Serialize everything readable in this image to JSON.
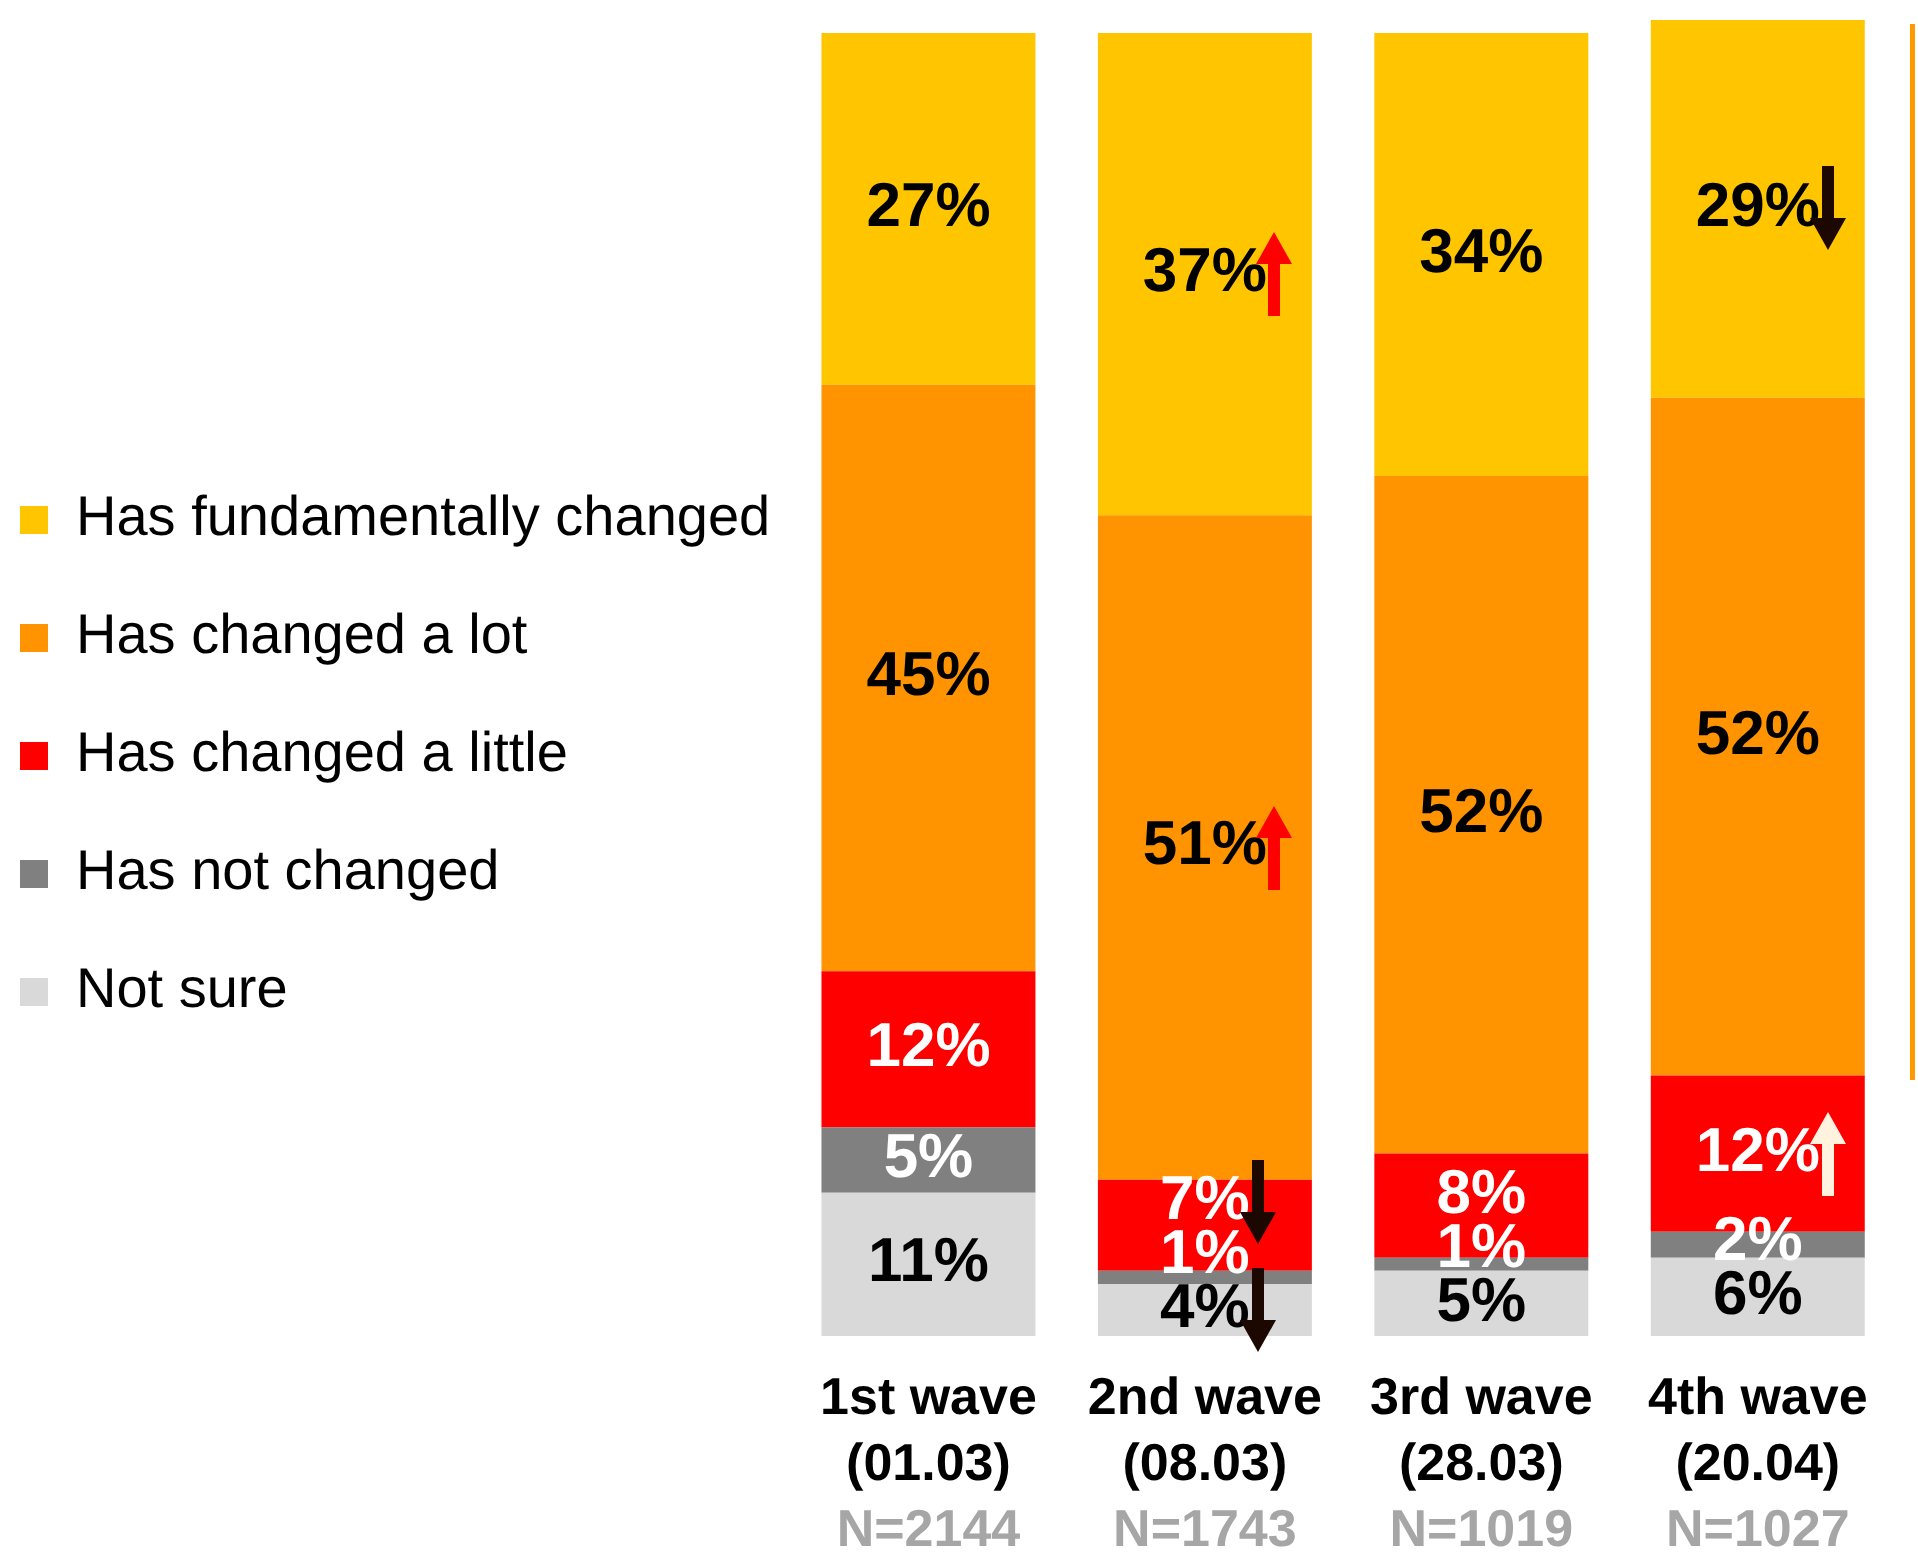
{
  "chart_data": {
    "type": "bar",
    "stacked": true,
    "legend": "left",
    "tick_labels": "x",
    "categories": [
      "1st wave\n(01.03)\nN=2144",
      "2nd wave\n(08.03)\nN=1743",
      "3rd wave\n(28.03)\nN=1019",
      "4th wave\n(20.04)\nN=1027"
    ],
    "series": [
      {
        "name": "Not sure",
        "color": "#d9d9d9",
        "values": [
          11,
          4,
          5,
          6
        ],
        "value_labels": [
          "11%",
          "4%",
          "5%",
          "6%"
        ]
      },
      {
        "name": "Has not changed",
        "color": "#808080",
        "values": [
          5,
          1,
          1,
          2
        ],
        "value_labels": [
          "5%",
          "1%",
          "1%",
          "2%"
        ]
      },
      {
        "name": "Has changed a little",
        "color": "#ff0000",
        "values": [
          12,
          7,
          8,
          12
        ],
        "value_labels": [
          "12%",
          "7%",
          "8%",
          "12%"
        ]
      },
      {
        "name": "Has changed a lot",
        "color": "#ff9400",
        "values": [
          45,
          51,
          52,
          52
        ],
        "value_labels": [
          "45%",
          "51%",
          "52%",
          "52%"
        ]
      },
      {
        "name": "Has fundamentally changed",
        "color": "#ffc600",
        "values": [
          27,
          37,
          34,
          29
        ],
        "value_labels": [
          "27%",
          "37%",
          "34%",
          "29%"
        ]
      }
    ]
  }
}
